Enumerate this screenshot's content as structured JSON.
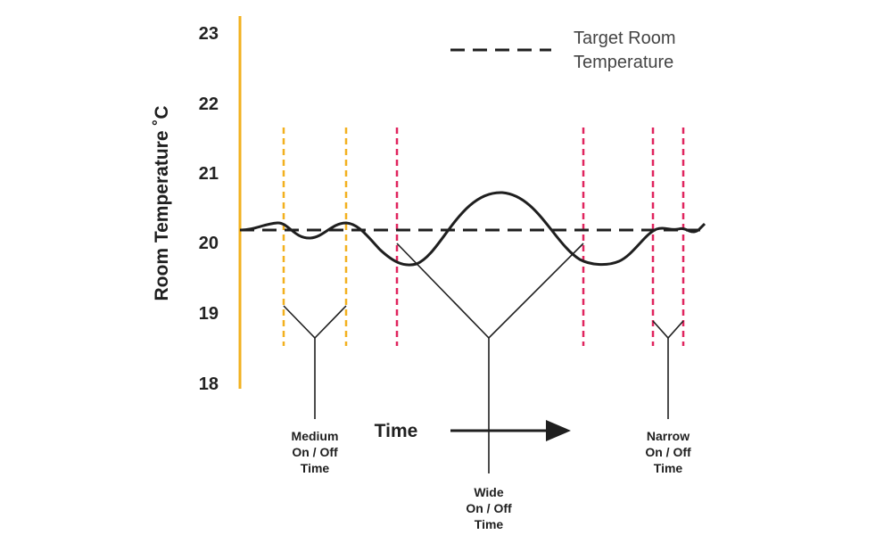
{
  "chart_data": {
    "type": "line",
    "ylabel": "Room Temperature ˚C",
    "xlabel": "Time",
    "ylim": [
      18,
      23
    ],
    "y_ticks": [
      "23",
      "22",
      "21",
      "20",
      "19",
      "18"
    ],
    "grid": false,
    "target_temperature": 20.15,
    "legend": {
      "placement": "top-right",
      "label_line1": "Target Room",
      "label_line2": "Temperature"
    },
    "annotations": [
      {
        "id": "medium",
        "lines": [
          "Medium",
          "On / Off",
          "Time"
        ],
        "marker_color": "#f2b01e"
      },
      {
        "id": "wide",
        "lines": [
          "Wide",
          "On / Off",
          "Time"
        ],
        "marker_color": "#e0245e"
      },
      {
        "id": "narrow",
        "lines": [
          "Narrow",
          "On / Off",
          "Time"
        ],
        "marker_color": "#e0245e"
      }
    ],
    "colors": {
      "axis_start": "#f2b01e",
      "axis_end": "#e0306e",
      "curve": "#1f1f1f",
      "target_line": "#1f1f1f"
    }
  }
}
